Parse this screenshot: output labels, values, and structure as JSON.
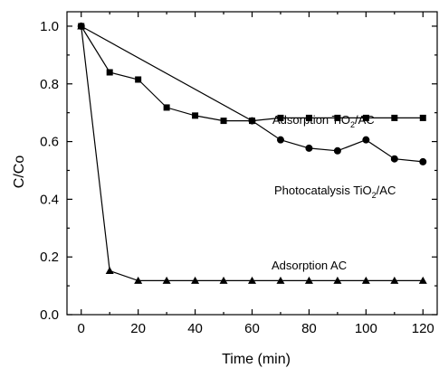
{
  "chart_data": {
    "type": "line",
    "xlabel": "Time (min)",
    "ylabel": "C/Co",
    "xlim": [
      -5,
      125
    ],
    "ylim": [
      0.0,
      1.05
    ],
    "xticks": [
      "0",
      "20",
      "40",
      "60",
      "80",
      "100",
      "120"
    ],
    "yticks": [
      "0.0",
      "0.2",
      "0.4",
      "0.6",
      "0.8",
      "1.0"
    ],
    "grid": false,
    "series": [
      {
        "marker": "square",
        "x": [
          0,
          10,
          20,
          30,
          40,
          50,
          60,
          70,
          80,
          90,
          100,
          110,
          120
        ],
        "y": [
          1.0,
          0.84,
          0.815,
          0.718,
          0.69,
          0.672,
          0.672,
          0.682,
          0.682,
          0.682,
          0.682,
          0.682,
          0.682
        ]
      },
      {
        "marker": "circle",
        "x": [
          0,
          60,
          70,
          80,
          90,
          100,
          110,
          120
        ],
        "y": [
          1.0,
          0.672,
          0.606,
          0.577,
          0.568,
          0.606,
          0.54,
          0.53
        ]
      },
      {
        "marker": "triangle",
        "x": [
          0,
          10,
          20,
          30,
          40,
          50,
          60,
          70,
          80,
          90,
          100,
          110,
          120
        ],
        "y": [
          1.0,
          0.152,
          0.118,
          0.118,
          0.118,
          0.118,
          0.118,
          0.118,
          0.118,
          0.118,
          0.118,
          0.118,
          0.118
        ]
      }
    ],
    "annotations": [
      {
        "text": "Adsorption TiO",
        "sub": "2",
        "tail": "/AC"
      },
      {
        "text": "Photocatalysis TiO",
        "sub": "2",
        "tail": "/AC"
      },
      {
        "text": "Adsorption AC",
        "sub": "",
        "tail": ""
      }
    ]
  }
}
